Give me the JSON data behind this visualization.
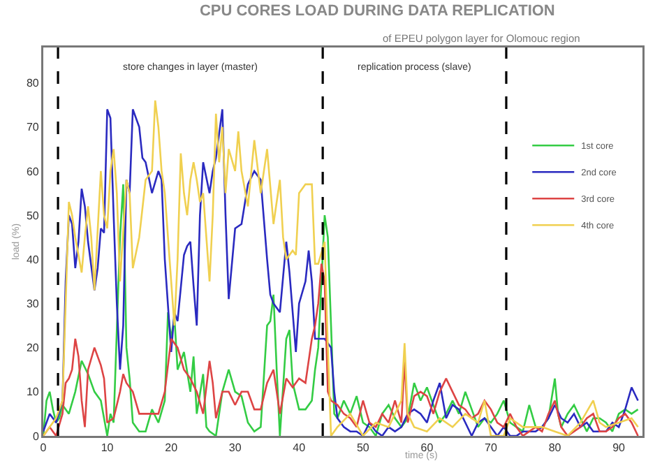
{
  "chart_data": {
    "type": "line",
    "title": "CPU CORES LOAD DURING DATA REPLICATION",
    "subtitle": "of EPEU polygon layer for Olomouc region",
    "xlabel": "time (s)",
    "ylabel": "load (%)",
    "xlim": [
      0,
      93.7
    ],
    "ylim": [
      0,
      88
    ],
    "xticks": [
      0,
      10,
      20,
      30,
      40,
      50,
      60,
      70,
      80,
      90
    ],
    "yticks": [
      0,
      10,
      20,
      30,
      40,
      50,
      60,
      70,
      80
    ],
    "grid": false,
    "legend": "top right",
    "marker": "none",
    "line_style": "solid",
    "ref_lines": [
      {
        "axis": "x",
        "value": 2.3,
        "color": "#000000",
        "line_style": "dashed"
      },
      {
        "axis": "x",
        "value": 43.7,
        "color": "#000000",
        "line_style": "dashed"
      },
      {
        "axis": "x",
        "value": 72.4,
        "color": "#000000",
        "line_style": "dashed"
      }
    ],
    "annotations": [
      "store changes in layer (master)",
      "replication process (slave)"
    ],
    "series": [
      {
        "name": "1st core",
        "color": "#33cc44",
        "x": [
          0,
          0.5,
          1,
          1.5,
          2,
          2.5,
          3,
          4,
          5,
          6,
          7,
          8,
          9,
          10,
          10.5,
          11,
          12,
          12.5,
          13,
          13.5,
          14,
          15,
          16,
          17,
          18,
          19,
          19.5,
          20,
          20.5,
          21,
          22,
          23,
          23.5,
          24,
          25,
          25.5,
          26,
          27,
          28,
          29,
          30,
          31,
          32,
          33,
          34,
          35,
          35.5,
          36,
          36.5,
          37,
          38,
          38.5,
          39,
          40,
          41,
          42,
          42.5,
          43,
          43.5,
          44,
          44.5,
          45,
          45.5,
          46,
          47,
          48,
          49,
          50,
          51,
          52,
          53,
          54,
          55,
          56,
          57,
          58,
          59,
          60,
          61,
          62,
          63,
          64,
          65,
          66,
          67,
          68,
          69,
          70,
          71,
          72,
          73,
          74,
          75,
          76,
          77,
          78,
          79,
          80,
          80.5,
          81,
          82,
          83,
          84,
          85,
          86,
          87,
          88,
          89,
          90,
          91,
          92,
          93
        ],
        "values": [
          0,
          8,
          10,
          6,
          3,
          4,
          7,
          5,
          10,
          17,
          14,
          10,
          8,
          0,
          5,
          3,
          45,
          57,
          20,
          13,
          3,
          1,
          1,
          6,
          3,
          8,
          28,
          22,
          27,
          15,
          19,
          10,
          18,
          5,
          14,
          2,
          1,
          0,
          10,
          15,
          10,
          9,
          3,
          1,
          2,
          25,
          26,
          32,
          15,
          0,
          22,
          24,
          12,
          6,
          6,
          8,
          15,
          20,
          35,
          50,
          45,
          25,
          5,
          4,
          8,
          5,
          9,
          3,
          2,
          0,
          5,
          7,
          4,
          2,
          4,
          12,
          8,
          11,
          7,
          3,
          5,
          8,
          5,
          10,
          6,
          2,
          4,
          3,
          5,
          8,
          3,
          2,
          1,
          7,
          2,
          2,
          4,
          13,
          5,
          2,
          5,
          7,
          4,
          1,
          4,
          4,
          3,
          1,
          5,
          6,
          5,
          6
        ]
      },
      {
        "name": "2nd core",
        "color": "#2a2ac0",
        "x": [
          0,
          1,
          2,
          3,
          3.5,
          4,
          4.5,
          5,
          5.5,
          6,
          6.5,
          7,
          8,
          8.5,
          9,
          9.5,
          10,
          10.5,
          11,
          11.5,
          12,
          12.5,
          13,
          13.5,
          14,
          15,
          15.5,
          16,
          17,
          18,
          18.5,
          19,
          20,
          20.5,
          21,
          22,
          22.5,
          23,
          23.5,
          24,
          24.5,
          25,
          26,
          26.5,
          27,
          28,
          28.5,
          29,
          30,
          31,
          32,
          33,
          34,
          35,
          35.5,
          36,
          37,
          37.5,
          38,
          38.5,
          39,
          39.5,
          40,
          41,
          41.5,
          42,
          42.5,
          43,
          44,
          45,
          45.5,
          46,
          47,
          48,
          49,
          50,
          51,
          52,
          53,
          54,
          55,
          56,
          57,
          58,
          59,
          60,
          61,
          62,
          63,
          64,
          65,
          66,
          67,
          68,
          69,
          70,
          71,
          72,
          73,
          74,
          75,
          76,
          77,
          78,
          79,
          80,
          81,
          82,
          83,
          84,
          85,
          86,
          87,
          88,
          89,
          90,
          91,
          92,
          93
        ],
        "values": [
          1,
          5,
          3,
          8,
          35,
          50,
          48,
          38,
          44,
          56,
          52,
          44,
          33,
          38,
          47,
          46,
          74,
          72,
          50,
          30,
          15,
          25,
          58,
          55,
          74,
          70,
          63,
          62,
          55,
          60,
          58,
          40,
          19,
          28,
          26,
          41,
          43,
          44,
          34,
          25,
          50,
          62,
          55,
          60,
          63,
          74,
          50,
          31,
          47,
          48,
          57,
          60,
          58,
          40,
          32,
          30,
          28,
          36,
          44,
          37,
          28,
          19,
          30,
          35,
          42,
          35,
          22,
          22,
          22,
          20,
          10,
          4,
          2,
          1,
          1,
          0,
          3,
          1,
          0,
          2,
          1,
          2,
          5,
          6,
          5,
          3,
          8,
          12,
          4,
          7,
          6,
          3,
          0,
          3,
          4,
          2,
          0,
          2,
          0,
          0,
          1,
          1,
          1,
          2,
          4,
          7,
          4,
          3,
          5,
          2,
          3,
          1,
          1,
          1,
          3,
          2,
          6,
          11,
          8
        ]
      },
      {
        "name": "3rd core",
        "color": "#dd4444",
        "x": [
          0,
          1,
          1.5,
          2,
          3,
          3.5,
          4,
          4.5,
          5,
          5.5,
          6,
          6.5,
          7,
          8,
          9,
          9.5,
          10,
          11,
          12,
          12.5,
          13,
          14,
          15,
          16,
          17,
          18,
          19,
          20,
          21,
          22,
          23,
          24,
          25,
          26,
          26.5,
          27,
          28,
          29,
          30,
          31,
          32,
          33,
          34,
          35,
          36,
          37,
          38,
          39,
          40,
          41,
          42,
          42.5,
          43,
          43.5,
          44,
          44.5,
          45,
          46,
          47,
          48,
          49,
          50,
          51,
          52,
          53,
          54,
          55,
          56,
          56.5,
          57,
          58,
          59,
          60,
          61,
          62,
          63,
          64,
          65,
          66,
          67,
          68,
          69,
          70,
          71,
          72,
          73,
          74,
          75,
          76,
          77,
          78,
          79,
          80,
          81,
          82,
          83,
          84,
          85,
          86,
          87,
          88,
          89,
          90,
          91,
          92,
          93
        ],
        "values": [
          0,
          2,
          1,
          0,
          5,
          12,
          13,
          15,
          22,
          18,
          8,
          2,
          15,
          20,
          16,
          13,
          3,
          4,
          10,
          14,
          12,
          10,
          5,
          5,
          5,
          5,
          10,
          22,
          20,
          15,
          13,
          10,
          5,
          17,
          12,
          4,
          10,
          10,
          7,
          10,
          10,
          6,
          6,
          12,
          15,
          5,
          13,
          11,
          13,
          12,
          22,
          25,
          30,
          39,
          35,
          10,
          8,
          7,
          5,
          4,
          2,
          8,
          3,
          2,
          5,
          3,
          8,
          3,
          17,
          3,
          9,
          10,
          9,
          5,
          10,
          13,
          10,
          7,
          6,
          4,
          5,
          8,
          6,
          3,
          2,
          5,
          2,
          0,
          1,
          2,
          1,
          5,
          8,
          2,
          0,
          1,
          2,
          4,
          5,
          1,
          1,
          2,
          4,
          5,
          3,
          0
        ]
      },
      {
        "name": "4th core",
        "color": "#f0d050",
        "x": [
          0,
          1,
          2,
          3,
          3.5,
          4,
          4.5,
          5,
          6,
          6.5,
          7,
          7.5,
          8,
          9,
          9.5,
          10,
          10.5,
          11,
          11.5,
          12,
          13,
          13.5,
          14,
          15,
          16,
          17,
          17.5,
          18,
          18.5,
          19,
          20,
          20.5,
          21,
          21.5,
          22,
          22.5,
          23,
          23.5,
          24,
          24.5,
          25,
          26,
          26.5,
          27,
          27.5,
          28,
          28.5,
          29,
          30,
          30.5,
          31,
          32,
          33,
          34,
          35,
          36,
          37,
          37.5,
          38,
          39,
          39.5,
          40,
          41,
          42,
          42.5,
          43,
          44,
          44.5,
          45,
          46,
          48,
          50,
          52,
          54,
          55,
          56,
          56.5,
          57,
          58,
          60,
          62,
          64,
          66,
          68,
          69,
          70,
          72,
          73,
          75,
          78,
          80,
          82,
          84,
          86,
          87,
          88,
          90,
          92,
          93
        ],
        "values": [
          0,
          2,
          4,
          8,
          30,
          53,
          50,
          45,
          37,
          45,
          52,
          45,
          33,
          60,
          50,
          47,
          60,
          65,
          55,
          35,
          58,
          55,
          38,
          45,
          58,
          60,
          76,
          70,
          60,
          55,
          35,
          25,
          40,
          64,
          55,
          50,
          58,
          62,
          58,
          53,
          55,
          35,
          50,
          73,
          62,
          70,
          55,
          65,
          60,
          69,
          60,
          52,
          67,
          55,
          65,
          48,
          58,
          45,
          40,
          42,
          41,
          55,
          57,
          57,
          39,
          39,
          44,
          20,
          0,
          2,
          5,
          0,
          3,
          2,
          5,
          8,
          21,
          5,
          2,
          1,
          4,
          2,
          5,
          3,
          8,
          0,
          0,
          4,
          2,
          2,
          1,
          0,
          3,
          8,
          3,
          2,
          3,
          4,
          2
        ]
      }
    ]
  }
}
